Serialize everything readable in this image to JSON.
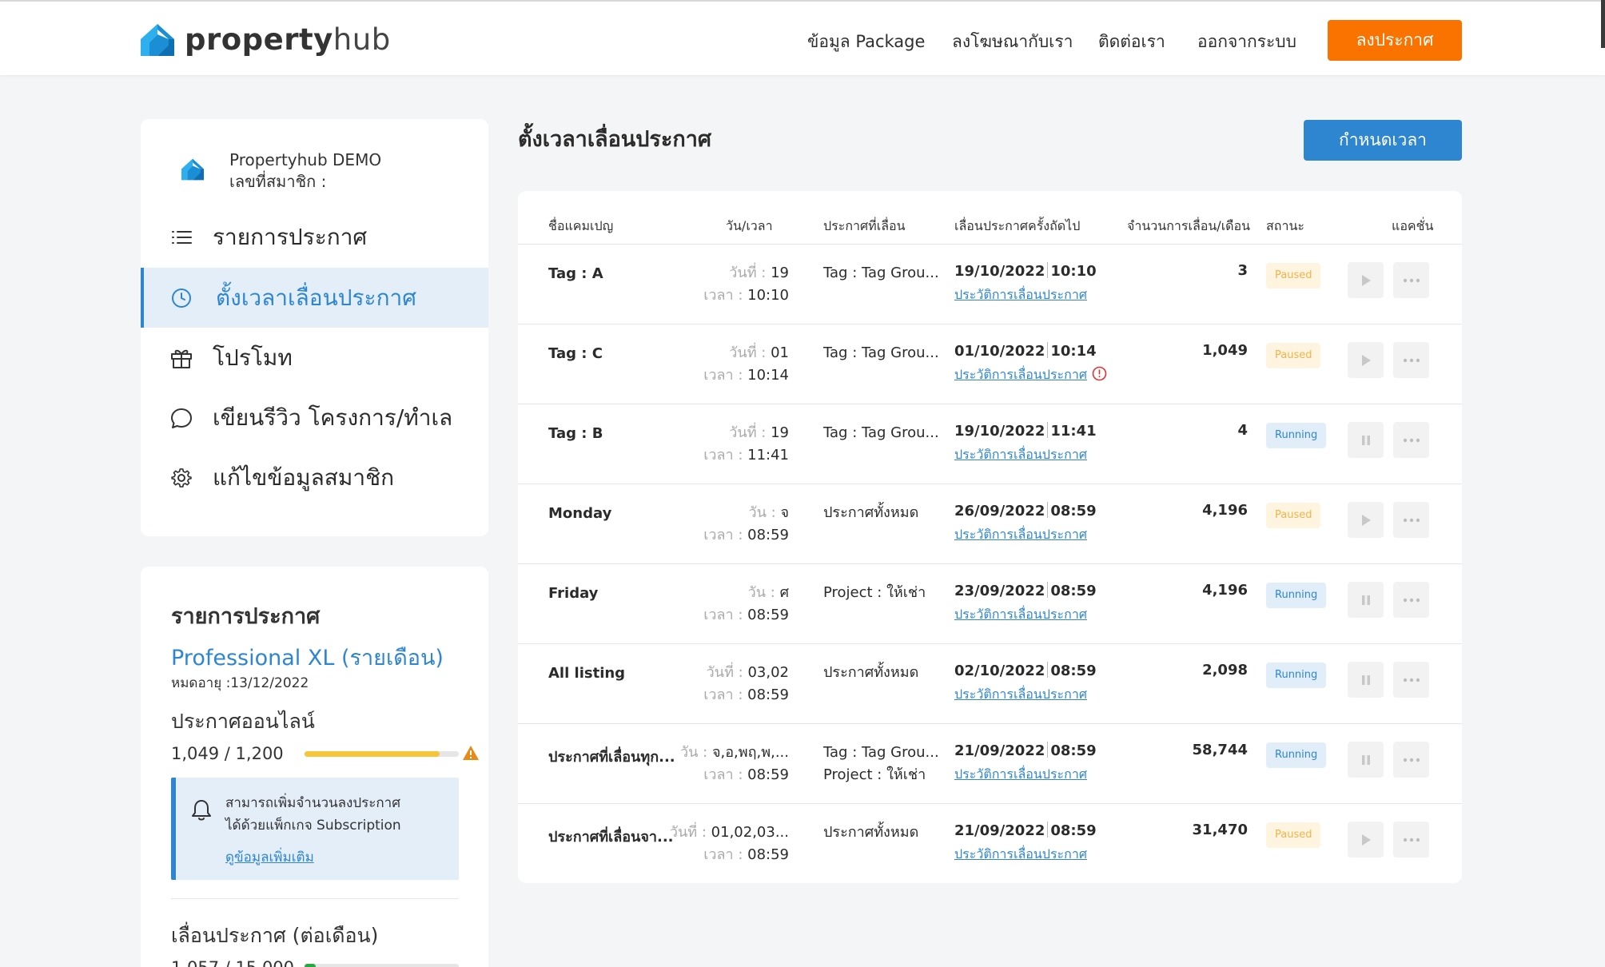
{
  "header": {
    "logo_bold": "property",
    "logo_light": "hub",
    "nav": [
      "ข้อมูล Package",
      "ลงโฆษณากับเรา",
      "ติดต่อเรา",
      "ออกจากระบบ"
    ],
    "cta": "ลงประกาศ"
  },
  "sidebar": {
    "profile_name": "Propertyhub DEMO",
    "member_label": "เลขที่สมาชิก :",
    "menu": [
      {
        "label": "รายการประกาศ",
        "icon": "list-icon"
      },
      {
        "label": "ตั้งเวลาเลื่อนประกาศ",
        "icon": "clock-icon"
      },
      {
        "label": "โปรโมท",
        "icon": "gift-icon"
      },
      {
        "label": "เขียนรีวิว โครงการ/ทำเล",
        "icon": "chat-bubble-icon"
      },
      {
        "label": "แก้ไขข้อมูลสมาชิก",
        "icon": "gear-icon"
      }
    ]
  },
  "package": {
    "title": "รายการประกาศ",
    "name": "Professional XL (รายเดือน)",
    "expire": "หมดอายุ :13/12/2022",
    "online_label": "ประกาศออนไลน์",
    "online_count": "1,049 / 1,200",
    "online_progress": 0.874,
    "notice_line1": "สามารถเพิ่มจำนวนลงประกาศ",
    "notice_line2": "ได้ด้วยแพ็กเกจ Subscription",
    "notice_link": "ดูข้อมูลเพิ่มเติม",
    "bump_label": "เลื่อนประกาศ (ต่อเดือน)",
    "bump_count": "1,057 / 15,000",
    "bump_progress": 0.0705
  },
  "main": {
    "title": "ตั้งเวลาเลื่อนประกาศ",
    "schedule_button": "กำหนดเวลา",
    "columns": [
      "ชื่อแคมเปญ",
      "วัน/เวลา",
      "ประกาศที่เลื่อน",
      "เลื่อนประกาศครั้งถัดไป",
      "จำนวนการเลื่อน/เดือน",
      "สถานะ",
      "แอคชั่น"
    ],
    "history_label": "ประวัติการเลื่อนประกาศ",
    "day_label_date": "วันที่ :",
    "day_label_week": "วัน :",
    "time_label": "เวลา :",
    "rows": [
      {
        "name": "Tag : A",
        "day_type": "date",
        "day": "19",
        "time": "10:10",
        "target": [
          "Tag : Tag Grou..."
        ],
        "next_date": "19/10/2022",
        "next_time": "10:10",
        "alert": false,
        "count": "3",
        "status": "Paused"
      },
      {
        "name": "Tag : C",
        "day_type": "date",
        "day": "01",
        "time": "10:14",
        "target": [
          "Tag : Tag Grou..."
        ],
        "next_date": "01/10/2022",
        "next_time": "10:14",
        "alert": true,
        "count": "1,049",
        "status": "Paused"
      },
      {
        "name": "Tag : B",
        "day_type": "date",
        "day": "19",
        "time": "11:41",
        "target": [
          "Tag : Tag Grou..."
        ],
        "next_date": "19/10/2022",
        "next_time": "11:41",
        "alert": false,
        "count": "4",
        "status": "Running"
      },
      {
        "name": "Monday",
        "day_type": "week",
        "day": "จ",
        "time": "08:59",
        "target": [
          "ประกาศทั้งหมด"
        ],
        "next_date": "26/09/2022",
        "next_time": "08:59",
        "alert": false,
        "count": "4,196",
        "status": "Paused"
      },
      {
        "name": "Friday",
        "day_type": "week",
        "day": "ศ",
        "time": "08:59",
        "target": [
          "Project :  ให้เช่า"
        ],
        "next_date": "23/09/2022",
        "next_time": "08:59",
        "alert": false,
        "count": "4,196",
        "status": "Running"
      },
      {
        "name": "All listing",
        "day_type": "date",
        "day": "03,02",
        "time": "08:59",
        "target": [
          "ประกาศทั้งหมด"
        ],
        "next_date": "02/10/2022",
        "next_time": "08:59",
        "alert": false,
        "count": "2,098",
        "status": "Running"
      },
      {
        "name": "ประกาศที่เลื่อนทุก...",
        "day_type": "week",
        "day": "จ,อ,พฤ,พ,...",
        "time": "08:59",
        "target": [
          "Tag : Tag Grou...",
          "Project :  ให้เช่า"
        ],
        "next_date": "21/09/2022",
        "next_time": "08:59",
        "alert": false,
        "count": "58,744",
        "status": "Running"
      },
      {
        "name": "ประกาศที่เลื่อนจา...",
        "day_type": "date",
        "day": "01,02,03...",
        "time": "08:59",
        "target": [
          "ประกาศทั้งหมด"
        ],
        "next_date": "21/09/2022",
        "next_time": "08:59",
        "alert": false,
        "count": "31,470",
        "status": "Paused"
      }
    ]
  },
  "colors": {
    "accent_blue": "#2f86d0",
    "cta_orange": "#fa7301",
    "progress_yellow": "#f7c53a",
    "progress_green": "#27a744"
  }
}
